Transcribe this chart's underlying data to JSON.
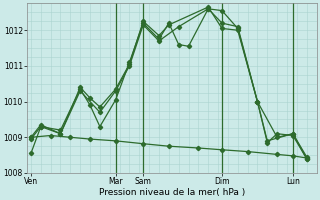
{
  "xlabel": "Pression niveau de la mer( hPa )",
  "bg_color": "#cceae8",
  "grid_major_color": "#aad4d0",
  "grid_minor_color": "#bedddb",
  "vline_color": "#2d6b2d",
  "line_color": "#2d6b2d",
  "ylim": [
    1008.0,
    1012.75
  ],
  "xlim": [
    -0.2,
    14.5
  ],
  "yticks": [
    1008,
    1009,
    1010,
    1011,
    1012
  ],
  "x_tick_vals": [
    0.0,
    4.3,
    5.7,
    9.7,
    13.3
  ],
  "x_tick_labels": [
    "Ven",
    "Mar",
    "Sam",
    "Dim",
    "Lun"
  ],
  "vline_positions": [
    4.3,
    5.7,
    9.7,
    13.3
  ],
  "series1": {
    "x": [
      0,
      0.5,
      1.5,
      2.5,
      3.0,
      3.5,
      4.3,
      5.0,
      5.7,
      6.5,
      7.0,
      7.5,
      8.0,
      9.0,
      9.7,
      10.5,
      11.5,
      12.0,
      12.5,
      13.3,
      14.0
    ],
    "y": [
      1008.55,
      1009.3,
      1009.2,
      1010.35,
      1009.9,
      1009.3,
      1010.05,
      1011.1,
      1012.2,
      1011.75,
      1012.2,
      1011.6,
      1011.55,
      1012.6,
      1012.55,
      1012.05,
      1010.0,
      1008.85,
      1009.1,
      1009.05,
      1008.4
    ]
  },
  "series2": {
    "x": [
      0,
      0.5,
      1.5,
      2.5,
      3.0,
      3.5,
      4.3,
      5.0,
      5.7,
      6.5,
      7.0,
      9.0,
      9.7,
      10.5,
      11.5,
      12.5,
      13.3,
      14.0
    ],
    "y": [
      1009.0,
      1009.35,
      1009.1,
      1010.4,
      1010.1,
      1009.85,
      1010.35,
      1011.05,
      1012.25,
      1011.85,
      1012.15,
      1012.65,
      1012.05,
      1012.0,
      1010.0,
      1009.0,
      1009.1,
      1008.4
    ]
  },
  "series3": {
    "x": [
      0,
      0.5,
      1.5,
      2.5,
      3.5,
      4.3,
      5.0,
      5.7,
      6.5,
      7.5,
      9.0,
      9.7,
      10.5,
      11.5,
      12.0,
      13.3,
      14.0
    ],
    "y": [
      1008.95,
      1009.3,
      1009.1,
      1010.3,
      1009.7,
      1010.3,
      1011.0,
      1012.15,
      1011.7,
      1012.1,
      1012.6,
      1012.2,
      1012.1,
      1010.0,
      1008.9,
      1009.1,
      1008.45
    ]
  },
  "series4": {
    "x": [
      0,
      1.0,
      2.0,
      3.0,
      4.3,
      5.7,
      7.0,
      8.5,
      9.7,
      11.0,
      12.5,
      13.3,
      14.0
    ],
    "y": [
      1009.0,
      1009.05,
      1009.0,
      1008.95,
      1008.9,
      1008.82,
      1008.75,
      1008.7,
      1008.65,
      1008.6,
      1008.52,
      1008.48,
      1008.42
    ]
  }
}
